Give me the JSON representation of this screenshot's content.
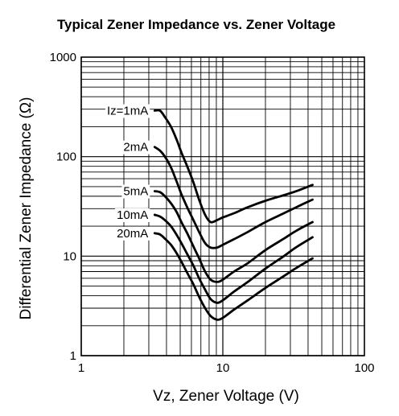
{
  "chart_data": {
    "type": "line",
    "title": "Typical Zener Impedance vs. Zener Voltage",
    "xlabel": "Vz, Zener Voltage (V)",
    "ylabel": "Differential Zener Impedance (Ω)",
    "x_scale": "log",
    "y_scale": "log",
    "xlim": [
      1,
      100
    ],
    "ylim": [
      1,
      1000
    ],
    "grid": true,
    "x_ticks": [
      "1",
      "10",
      "100"
    ],
    "y_ticks": [
      "1",
      "10",
      "100",
      "1000"
    ],
    "series": [
      {
        "name": "Iz=1mA",
        "x": [
          3.3,
          3.6,
          3.9,
          4.3,
          4.7,
          5.1,
          5.6,
          6.2,
          6.8,
          7.5,
          8.2,
          9.1,
          10,
          12,
          15,
          20,
          27,
          33,
          43
        ],
        "y": [
          290,
          290,
          250,
          200,
          150,
          110,
          80,
          55,
          37,
          26,
          22,
          23,
          24.5,
          27,
          31,
          36,
          41,
          45,
          52
        ]
      },
      {
        "name": "2mA",
        "x": [
          3.3,
          3.6,
          3.9,
          4.3,
          4.7,
          5.1,
          5.6,
          6.2,
          6.8,
          7.5,
          8.2,
          9.1,
          10,
          12,
          15,
          20,
          27,
          33,
          43
        ],
        "y": [
          125,
          115,
          100,
          78,
          57,
          42,
          31,
          23,
          17.5,
          13.5,
          12.2,
          12.2,
          13,
          14.8,
          17.5,
          22,
          27,
          31,
          37
        ]
      },
      {
        "name": "5mA",
        "x": [
          3.3,
          3.6,
          3.9,
          4.3,
          4.7,
          5.1,
          5.6,
          6.2,
          6.8,
          7.5,
          8.2,
          9.1,
          10,
          12,
          15,
          20,
          27,
          33,
          43
        ],
        "y": [
          45,
          44,
          40,
          34,
          28,
          22,
          17,
          12.5,
          9.5,
          7,
          5.8,
          5.5,
          5.8,
          7,
          8.5,
          11.5,
          15,
          18,
          22
        ]
      },
      {
        "name": "10mA",
        "x": [
          3.3,
          3.6,
          3.9,
          4.3,
          4.7,
          5.1,
          5.6,
          6.2,
          6.8,
          7.5,
          8.2,
          9.1,
          10,
          12,
          15,
          20,
          27,
          33,
          43
        ],
        "y": [
          26,
          25,
          23,
          20,
          16.5,
          13.5,
          10.5,
          8,
          6,
          4.6,
          3.7,
          3.4,
          3.6,
          4.4,
          5.5,
          7.5,
          10,
          12.3,
          15.5
        ]
      },
      {
        "name": "20mA",
        "x": [
          3.3,
          3.6,
          3.9,
          4.3,
          4.7,
          5.1,
          5.6,
          6.2,
          6.8,
          7.5,
          8.2,
          9.1,
          10,
          12,
          15,
          20,
          27,
          33,
          43
        ],
        "y": [
          17,
          16.5,
          15,
          13,
          10.8,
          8.8,
          6.8,
          5.2,
          3.9,
          3,
          2.5,
          2.3,
          2.4,
          2.9,
          3.6,
          4.8,
          6.3,
          7.6,
          9.5
        ]
      }
    ]
  }
}
